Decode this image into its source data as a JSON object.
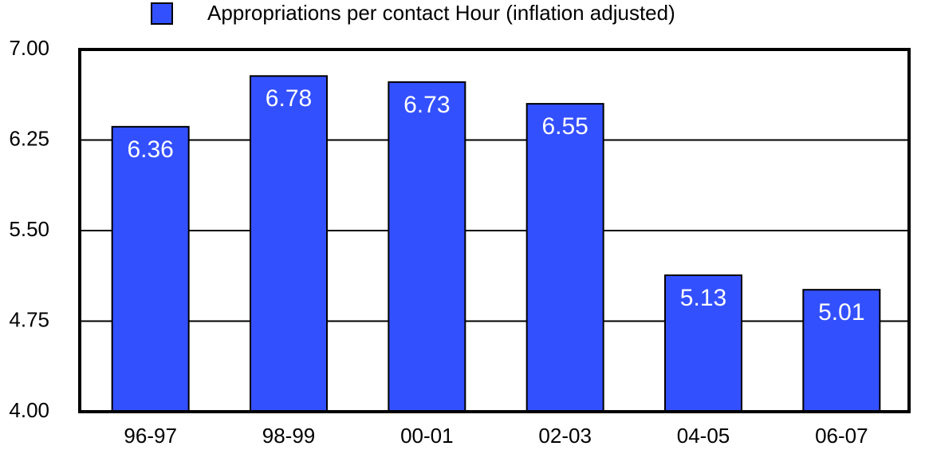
{
  "chart_data": {
    "type": "bar",
    "categories": [
      "96-97",
      "98-99",
      "00-01",
      "02-03",
      "04-05",
      "06-07"
    ],
    "series": [
      {
        "name": "Appropriations per contact Hour (inflation adjusted)",
        "color": "#3350ff",
        "values": [
          6.36,
          6.78,
          6.73,
          6.55,
          5.13,
          5.01
        ]
      }
    ],
    "ylim": [
      4,
      7
    ],
    "yticks": [
      {
        "value": 4,
        "label": "4.00"
      },
      {
        "value": 4.75,
        "label": "4.75"
      },
      {
        "value": 5.5,
        "label": "5.50"
      },
      {
        "value": 6.25,
        "label": "6.25"
      },
      {
        "value": 7,
        "label": "7.00"
      }
    ],
    "grid": true,
    "legend": "top"
  }
}
